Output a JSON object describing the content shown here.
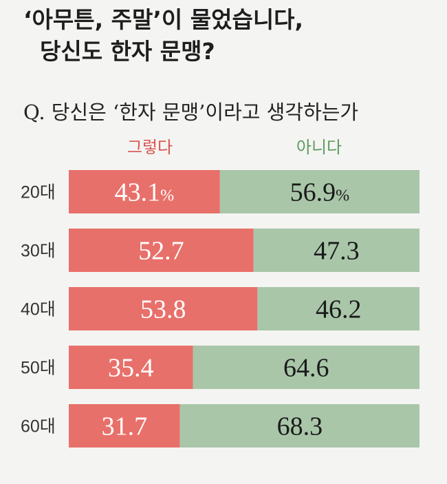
{
  "header": {
    "title_line1": "‘아무튼, 주말’이 물었습니다,",
    "title_line2": "당신도 한자 문맹?",
    "question": "Q. 당신은 ‘한자 문맹’이라고 생각하는가"
  },
  "chart_data": {
    "type": "bar",
    "orientation": "horizontal",
    "stacked": true,
    "percent_scale": true,
    "categories": [
      "20대",
      "30대",
      "40대",
      "50대",
      "60대"
    ],
    "series": [
      {
        "name": "그렇다",
        "color": "#e8706a",
        "text_color": "#ffffff",
        "legend_color": "#d9534f",
        "values": [
          43.1,
          52.7,
          53.8,
          35.4,
          31.7
        ]
      },
      {
        "name": "아니다",
        "color": "#a9c6a9",
        "text_color": "#1a1a1a",
        "legend_color": "#5f9a5f",
        "values": [
          56.9,
          47.3,
          46.2,
          64.6,
          68.3
        ]
      }
    ],
    "unit": "%",
    "xlim": [
      0,
      100
    ],
    "legend_position": "top",
    "grid": false
  }
}
